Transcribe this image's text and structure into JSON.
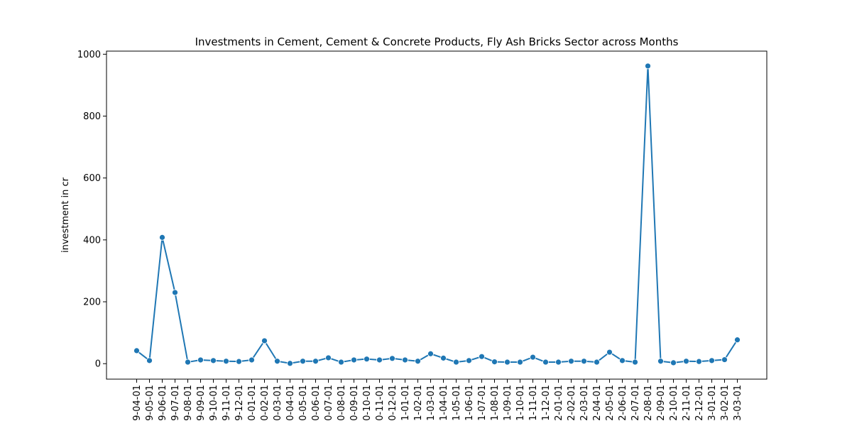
{
  "chart_data": {
    "type": "line",
    "title": "Investments in Cement, Cement & Concrete Products, Fly Ash Bricks Sector across Months",
    "xlabel": "",
    "ylabel": "investment in cr",
    "ylim": [
      -50,
      1010
    ],
    "yticks": [
      0,
      200,
      400,
      600,
      800,
      1000
    ],
    "grid": false,
    "color": "#1f77b4",
    "categories": [
      "9-04-01",
      "9-05-01",
      "9-06-01",
      "9-07-01",
      "9-08-01",
      "9-09-01",
      "9-10-01",
      "9-11-01",
      "9-12-01",
      "0-01-01",
      "0-02-01",
      "0-03-01",
      "0-04-01",
      "0-05-01",
      "0-06-01",
      "0-07-01",
      "0-08-01",
      "0-09-01",
      "0-10-01",
      "0-11-01",
      "0-12-01",
      "1-01-01",
      "1-02-01",
      "1-03-01",
      "1-04-01",
      "1-05-01",
      "1-06-01",
      "1-07-01",
      "1-08-01",
      "1-09-01",
      "1-10-01",
      "1-11-01",
      "1-12-01",
      "2-01-01",
      "2-02-01",
      "2-03-01",
      "2-04-01",
      "2-05-01",
      "2-06-01",
      "2-07-01",
      "2-08-01",
      "2-09-01",
      "2-10-01",
      "2-11-01",
      "2-12-01",
      "3-01-01",
      "3-02-01",
      "3-03-01"
    ],
    "values": [
      42,
      10,
      408,
      230,
      5,
      12,
      10,
      8,
      7,
      12,
      74,
      8,
      1,
      8,
      8,
      19,
      5,
      12,
      15,
      12,
      17,
      12,
      8,
      32,
      18,
      5,
      10,
      23,
      6,
      5,
      5,
      21,
      5,
      5,
      8,
      8,
      5,
      37,
      10,
      5,
      962,
      8,
      3,
      8,
      7,
      10,
      13,
      77
    ]
  }
}
